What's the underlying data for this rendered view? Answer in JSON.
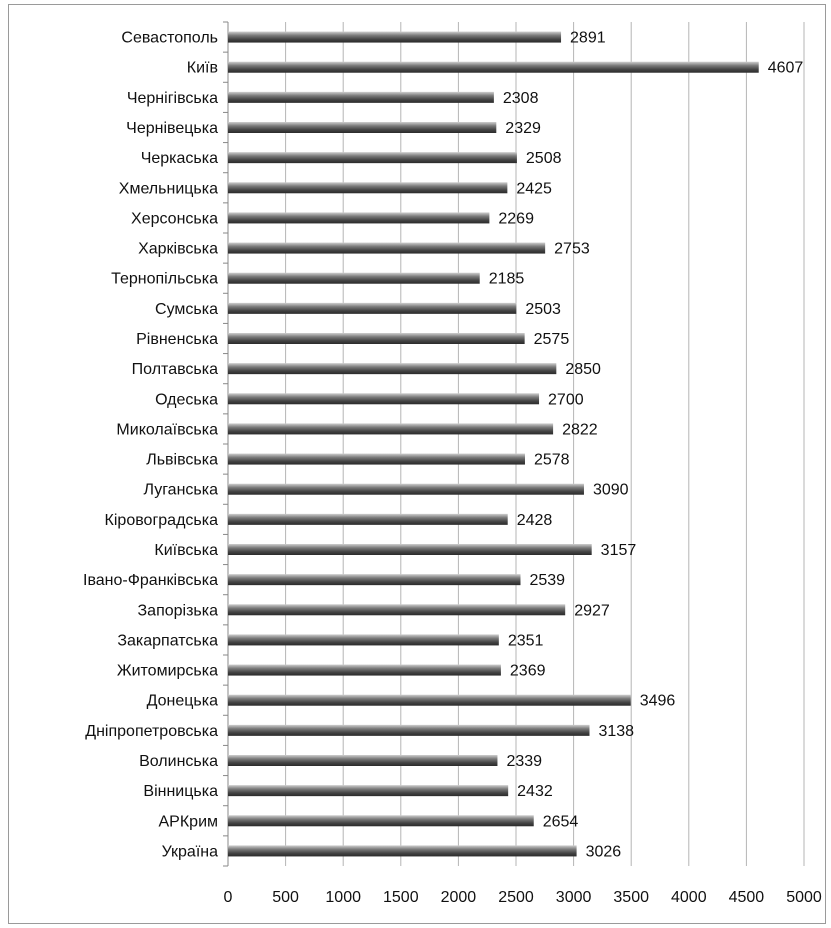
{
  "chart_data": {
    "type": "bar",
    "orientation": "horizontal",
    "categories": [
      "Севастополь",
      "Київ",
      "Чернігівська",
      "Чернівецька",
      "Черкаська",
      "Хмельницька",
      "Херсонська",
      "Харківська",
      "Тернопільська",
      "Сумська",
      "Рівненська",
      "Полтавська",
      "Одеська",
      "Миколаївська",
      "Львівська",
      "Луганська",
      "Кіровоградська",
      "Київська",
      "Івано-Франківська",
      "Запорізька",
      "Закарпатська",
      "Житомирська",
      "Донецька",
      "Дніпропетровська",
      "Волинська",
      "Вінницька",
      "АРКрим",
      "Україна"
    ],
    "values": [
      2891,
      4607,
      2308,
      2329,
      2508,
      2425,
      2269,
      2753,
      2185,
      2503,
      2575,
      2850,
      2700,
      2822,
      2578,
      3090,
      2428,
      3157,
      2539,
      2927,
      2351,
      2369,
      3496,
      3138,
      2339,
      2432,
      2654,
      3026
    ],
    "xlim": [
      0,
      5000
    ],
    "xticks": [
      0,
      500,
      1000,
      1500,
      2000,
      2500,
      3000,
      3500,
      4000,
      4500,
      5000
    ],
    "grid": true,
    "title": "",
    "xlabel": "",
    "ylabel": "",
    "bar_color": "#5a5a5a"
  }
}
